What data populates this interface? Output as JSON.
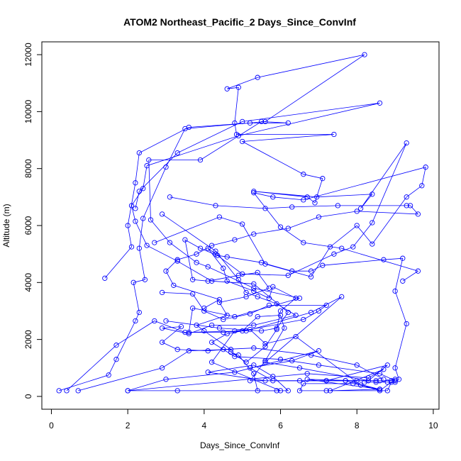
{
  "chart_data": {
    "type": "line",
    "title": "ATOM2 Northeast_Pacific_2 Days_Since_ConvInf",
    "xlabel": "Days_Since_ConvInf",
    "ylabel": "Altitude (m)",
    "xlim": [
      -0.25,
      10.15
    ],
    "ylim": [
      -450,
      12450
    ],
    "xticks": [
      0,
      2,
      4,
      6,
      8,
      10
    ],
    "yticks": [
      0,
      2000,
      4000,
      6000,
      8000,
      10000,
      12000
    ],
    "grid": false,
    "marker": "open-circle",
    "colors": {
      "series": "#0000ff",
      "axis": "#000000"
    },
    "series": [
      {
        "points": [
          [
            0.2,
            200
          ],
          [
            1.5,
            750
          ],
          [
            1.7,
            1300
          ],
          [
            2.2,
            2650
          ],
          [
            2.3,
            2950
          ],
          [
            2.15,
            4000
          ],
          [
            2.45,
            4100
          ],
          [
            2.3,
            5200
          ],
          [
            2.4,
            6250
          ],
          [
            3.0,
            8050
          ],
          [
            3.5,
            9400
          ],
          [
            5.6,
            9650
          ],
          [
            8.2,
            12000
          ],
          [
            5.4,
            11200
          ],
          [
            4.6,
            10800
          ],
          [
            4.9,
            10850
          ],
          [
            4.8,
            9600
          ],
          [
            4.85,
            9200
          ],
          [
            7.4,
            9200
          ],
          [
            5.0,
            8950
          ],
          [
            6.6,
            7800
          ],
          [
            7.1,
            7650
          ],
          [
            6.9,
            6800
          ],
          [
            6.7,
            7000
          ],
          [
            5.3,
            7200
          ],
          [
            6.95,
            7000
          ],
          [
            8.4,
            7100
          ],
          [
            8.1,
            6600
          ],
          [
            9.3,
            8900
          ],
          [
            8.4,
            6100
          ],
          [
            7.9,
            5250
          ],
          [
            7.4,
            5000
          ],
          [
            6.2,
            4250
          ],
          [
            5.0,
            4300
          ],
          [
            4.3,
            5000
          ],
          [
            4.1,
            5200
          ],
          [
            4.5,
            4500
          ],
          [
            4.6,
            4050
          ],
          [
            5.3,
            3700
          ],
          [
            5.7,
            3450
          ],
          [
            5.8,
            3850
          ],
          [
            6.4,
            3450
          ],
          [
            6.0,
            3000
          ],
          [
            5.9,
            2350
          ],
          [
            5.6,
            1750
          ],
          [
            5.1,
            1200
          ],
          [
            4.7,
            1550
          ],
          [
            4.9,
            1450
          ],
          [
            5.3,
            800
          ],
          [
            5.4,
            200
          ],
          [
            6.0,
            200
          ],
          [
            4.2,
            1200
          ],
          [
            4.8,
            2300
          ],
          [
            5.2,
            2350
          ],
          [
            5.6,
            1850
          ],
          [
            6.4,
            2100
          ],
          [
            8.1,
            400
          ],
          [
            8.6,
            200
          ],
          [
            9.0,
            600
          ],
          [
            8.9,
            550
          ],
          [
            8.6,
            550
          ],
          [
            8.0,
            550
          ],
          [
            6.7,
            600
          ],
          [
            8.6,
            250
          ],
          [
            7.7,
            550
          ],
          [
            7.2,
            550
          ]
        ]
      },
      {
        "points": [
          [
            0.4,
            200
          ],
          [
            1.7,
            1800
          ],
          [
            2.7,
            2650
          ],
          [
            3.5,
            2250
          ],
          [
            5.1,
            2300
          ],
          [
            6.8,
            2950
          ],
          [
            7.6,
            3500
          ],
          [
            5.6,
            1200
          ],
          [
            6.5,
            1000
          ],
          [
            8.3,
            550
          ],
          [
            8.8,
            1100
          ],
          [
            7.2,
            550
          ],
          [
            5.8,
            550
          ],
          [
            5.2,
            1000
          ],
          [
            6.3,
            1250
          ],
          [
            7.0,
            1600
          ],
          [
            4.8,
            850
          ],
          [
            3.0,
            600
          ],
          [
            2.0,
            200
          ],
          [
            3.3,
            200
          ],
          [
            5.9,
            200
          ],
          [
            6.2,
            200
          ],
          [
            5.8,
            700
          ],
          [
            5.3,
            1100
          ],
          [
            4.1,
            850
          ],
          [
            5.6,
            550
          ]
        ]
      },
      {
        "points": [
          [
            0.7,
            200
          ],
          [
            2.9,
            1000
          ],
          [
            3.6,
            1600
          ],
          [
            4.7,
            1650
          ],
          [
            4.0,
            2300
          ],
          [
            3.8,
            2500
          ],
          [
            4.6,
            2850
          ],
          [
            4.4,
            3300
          ],
          [
            5.1,
            3500
          ],
          [
            5.7,
            3800
          ],
          [
            5.4,
            4350
          ],
          [
            4.9,
            4250
          ],
          [
            4.1,
            4050
          ],
          [
            3.7,
            4100
          ],
          [
            3.5,
            5500
          ],
          [
            3.9,
            5200
          ],
          [
            4.35,
            4950
          ],
          [
            4.6,
            4900
          ],
          [
            5.5,
            4700
          ],
          [
            6.3,
            4400
          ],
          [
            6.8,
            4400
          ],
          [
            7.1,
            4600
          ],
          [
            8.7,
            4800
          ],
          [
            9.2,
            4850
          ],
          [
            9.0,
            3700
          ],
          [
            9.3,
            2550
          ],
          [
            9.0,
            1000
          ],
          [
            9.1,
            600
          ],
          [
            9.0,
            500
          ],
          [
            8.8,
            500
          ],
          [
            8.5,
            500
          ],
          [
            8.2,
            500
          ],
          [
            8.9,
            500
          ],
          [
            8.8,
            200
          ],
          [
            7.2,
            200
          ],
          [
            6.5,
            200
          ],
          [
            6.6,
            450
          ],
          [
            7.9,
            450
          ],
          [
            8.6,
            250
          ]
        ]
      },
      {
        "points": [
          [
            1.4,
            4150
          ],
          [
            2.1,
            5250
          ],
          [
            2.0,
            6000
          ],
          [
            2.2,
            7500
          ],
          [
            2.3,
            8550
          ],
          [
            3.6,
            9450
          ],
          [
            5.2,
            9600
          ],
          [
            6.2,
            9600
          ],
          [
            5.5,
            9650
          ],
          [
            3.9,
            8300
          ],
          [
            2.55,
            8300
          ],
          [
            2.6,
            6200
          ],
          [
            3.1,
            5400
          ],
          [
            3.8,
            4700
          ],
          [
            4.1,
            4550
          ],
          [
            5.3,
            3800
          ],
          [
            6.5,
            3450
          ],
          [
            4.8,
            2800
          ],
          [
            3.7,
            3100
          ],
          [
            3.6,
            2250
          ],
          [
            4.5,
            2250
          ],
          [
            5.0,
            2300
          ],
          [
            5.4,
            2800
          ],
          [
            6.0,
            2850
          ],
          [
            6.1,
            2400
          ],
          [
            5.6,
            1250
          ],
          [
            5.2,
            550
          ],
          [
            6.5,
            550
          ],
          [
            7.7,
            550
          ],
          [
            8.5,
            550
          ]
        ]
      },
      {
        "points": [
          [
            2.0,
            200
          ],
          [
            6.7,
            800
          ],
          [
            8.3,
            650
          ],
          [
            8.7,
            950
          ],
          [
            7.3,
            200
          ],
          [
            8.6,
            250
          ]
        ]
      },
      {
        "points": [
          [
            2.2,
            6600
          ],
          [
            2.3,
            7200
          ],
          [
            3.3,
            8550
          ],
          [
            5.0,
            9650
          ],
          [
            8.6,
            10300
          ],
          [
            4.9,
            9150
          ],
          [
            2.5,
            8100
          ],
          [
            2.4,
            7300
          ],
          [
            2.1,
            6700
          ],
          [
            2.2,
            6150
          ],
          [
            2.5,
            5300
          ],
          [
            3.3,
            4750
          ],
          [
            4.2,
            4050
          ],
          [
            5.3,
            3950
          ],
          [
            6.2,
            2950
          ],
          [
            5.9,
            2400
          ],
          [
            5.5,
            2300
          ],
          [
            4.4,
            2400
          ],
          [
            3.0,
            2650
          ]
        ]
      },
      {
        "points": [
          [
            2.7,
            5400
          ],
          [
            4.4,
            6300
          ],
          [
            5.0,
            6050
          ],
          [
            5.6,
            4650
          ],
          [
            6.8,
            4200
          ],
          [
            7.3,
            5250
          ],
          [
            8.0,
            6000
          ],
          [
            8.4,
            5350
          ],
          [
            9.3,
            7000
          ],
          [
            9.7,
            7400
          ],
          [
            9.8,
            8050
          ],
          [
            6.6,
            6900
          ],
          [
            5.8,
            7000
          ],
          [
            5.3,
            7150
          ],
          [
            6.0,
            5950
          ],
          [
            6.6,
            5400
          ],
          [
            7.6,
            5200
          ],
          [
            9.6,
            4400
          ],
          [
            9.2,
            4050
          ]
        ]
      },
      {
        "points": [
          [
            2.9,
            3650
          ],
          [
            3.7,
            3600
          ],
          [
            4.0,
            3000
          ],
          [
            4.5,
            2700
          ],
          [
            5.2,
            2900
          ],
          [
            5.7,
            3200
          ],
          [
            7.2,
            3200
          ],
          [
            7.0,
            3000
          ],
          [
            6.6,
            2700
          ],
          [
            4.6,
            2200
          ],
          [
            4.2,
            1900
          ],
          [
            4.8,
            1400
          ],
          [
            6.0,
            1300
          ],
          [
            7.0,
            1100
          ],
          [
            8.6,
            800
          ],
          [
            9.0,
            550
          ]
        ]
      },
      {
        "points": [
          [
            2.9,
            6400
          ],
          [
            4.3,
            5100
          ],
          [
            4.9,
            4100
          ],
          [
            5.1,
            3650
          ],
          [
            5.4,
            3500
          ],
          [
            5.9,
            3250
          ],
          [
            6.4,
            2850
          ],
          [
            5.3,
            2500
          ],
          [
            4.2,
            2500
          ],
          [
            3.6,
            2200
          ],
          [
            2.9,
            2400
          ],
          [
            3.4,
            2450
          ],
          [
            2.9,
            1900
          ],
          [
            3.3,
            1650
          ],
          [
            4.1,
            1600
          ],
          [
            4.5,
            1650
          ],
          [
            5.3,
            1700
          ],
          [
            6.8,
            1450
          ],
          [
            8.0,
            1100
          ],
          [
            8.7,
            600
          ]
        ]
      },
      {
        "points": [
          [
            3.1,
            7000
          ],
          [
            4.3,
            6700
          ],
          [
            5.6,
            6600
          ],
          [
            6.3,
            6650
          ],
          [
            7.5,
            6700
          ],
          [
            9.3,
            6700
          ],
          [
            9.4,
            6700
          ],
          [
            9.6,
            6400
          ],
          [
            8.0,
            6500
          ],
          [
            7.0,
            6300
          ],
          [
            6.2,
            5900
          ],
          [
            5.3,
            5700
          ],
          [
            4.8,
            5500
          ],
          [
            4.2,
            5300
          ],
          [
            3.8,
            5000
          ],
          [
            3.3,
            4800
          ],
          [
            3.0,
            4400
          ],
          [
            3.2,
            3900
          ],
          [
            4.4,
            3400
          ],
          [
            4.0,
            3100
          ]
        ]
      }
    ]
  }
}
